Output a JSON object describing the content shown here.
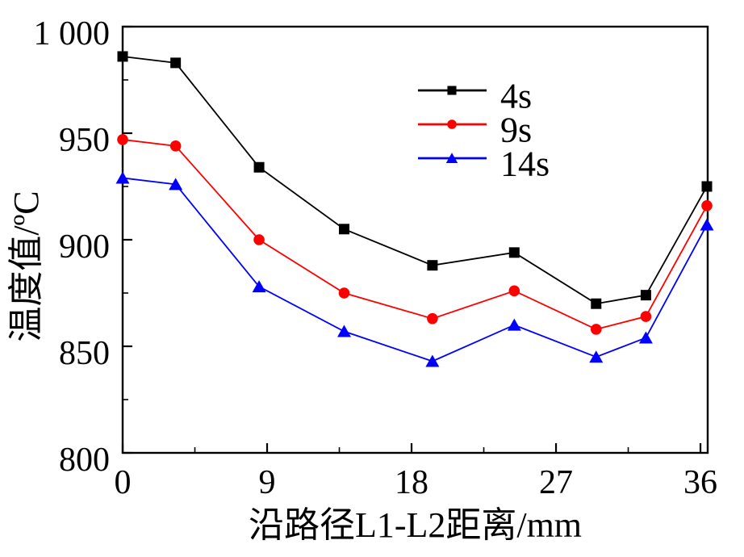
{
  "figure": {
    "background": "#FFFFFF"
  },
  "chart_data": {
    "type": "line",
    "title": "",
    "xlabel": "沿路径L1-L2距离/mm",
    "ylabel": "温度值/ºC",
    "xlim": [
      0,
      36.45
    ],
    "ylim": [
      800,
      1000
    ],
    "grid": false,
    "legend_position": "upper-center-inside",
    "frame": "full-box",
    "tick_direction": "in",
    "x_ticks": {
      "values": [
        0,
        9,
        18,
        27,
        36
      ],
      "labels": [
        "0",
        "9",
        "18",
        "27",
        "36"
      ],
      "minor": [
        4.5,
        13.5,
        22.5,
        31.5
      ]
    },
    "y_ticks": {
      "values": [
        800,
        850,
        900,
        950,
        1000
      ],
      "labels": [
        "800",
        "850",
        "900",
        "950",
        "1 000"
      ],
      "minor": [
        825,
        875,
        925,
        975
      ]
    },
    "x": [
      0,
      3.3,
      8.5,
      13.8,
      19.3,
      24.4,
      29.5,
      32.6,
      36.4
    ],
    "series": [
      {
        "name": "4s",
        "color": "#000000",
        "marker": "square",
        "values": [
          986,
          983,
          934,
          905,
          888,
          894,
          870,
          874,
          925
        ]
      },
      {
        "name": "9s",
        "color": "#FF0000",
        "marker": "circle",
        "values": [
          947,
          944,
          900,
          875,
          863,
          876,
          858,
          864,
          916
        ]
      },
      {
        "name": "14s",
        "color": "#0000FF",
        "marker": "triangle",
        "values": [
          929,
          926,
          878,
          857,
          843,
          860,
          845,
          854,
          907
        ]
      }
    ]
  }
}
